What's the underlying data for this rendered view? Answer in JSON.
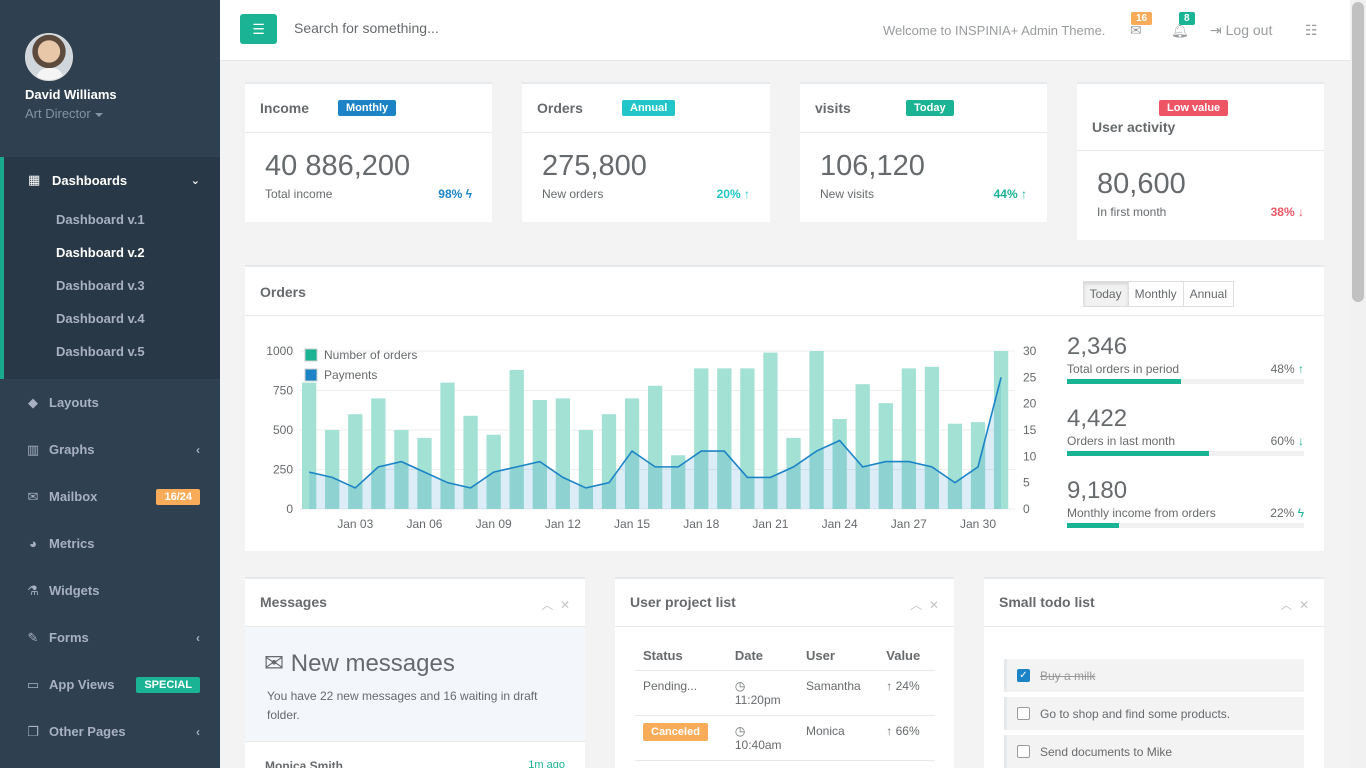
{
  "profile": {
    "name": "David Williams",
    "role": "Art Director"
  },
  "nav": {
    "dashboards": {
      "label": "Dashboards",
      "children": [
        "Dashboard v.1",
        "Dashboard v.2",
        "Dashboard v.3",
        "Dashboard v.4",
        "Dashboard v.5"
      ],
      "active_child": "Dashboard v.2"
    },
    "items": [
      {
        "label": "Layouts",
        "icon": "diamond-icon"
      },
      {
        "label": "Graphs",
        "icon": "bar-chart-icon",
        "arrow": true
      },
      {
        "label": "Mailbox",
        "icon": "envelope-icon",
        "badge": "16/24"
      },
      {
        "label": "Metrics",
        "icon": "pie-chart-icon"
      },
      {
        "label": "Widgets",
        "icon": "flask-icon"
      },
      {
        "label": "Forms",
        "icon": "edit-icon",
        "arrow": true
      },
      {
        "label": "App Views",
        "icon": "desktop-icon",
        "badge": "SPECIAL"
      },
      {
        "label": "Other Pages",
        "icon": "files-icon",
        "arrow": true
      }
    ]
  },
  "topbar": {
    "search_placeholder": "Search for something...",
    "welcome": "Welcome to INSPINIA+ Admin Theme.",
    "mail_count": "16",
    "bell_count": "8",
    "logout": "Log out"
  },
  "stats": [
    {
      "title": "Income",
      "label": "Monthly",
      "value": "40 886,200",
      "sub": "Total income",
      "pct": "98%"
    },
    {
      "title": "Orders",
      "label": "Annual",
      "value": "275,800",
      "sub": "New orders",
      "pct": "20%"
    },
    {
      "title": "visits",
      "label": "Today",
      "value": "106,120",
      "sub": "New visits",
      "pct": "44%"
    },
    {
      "title": "User activity",
      "label": "Low value",
      "value": "80,600",
      "sub": "In first month",
      "pct": "38%"
    }
  ],
  "orders_panel": {
    "title": "Orders",
    "buttons": [
      "Today",
      "Monthly",
      "Annual"
    ],
    "mini_stats": [
      {
        "value": "2,346",
        "label": "Total orders in period",
        "pct": "48%",
        "fill": 0.48
      },
      {
        "value": "4,422",
        "label": "Orders in last month",
        "pct": "60%",
        "fill": 0.6
      },
      {
        "value": "9,180",
        "label": "Monthly income from orders",
        "pct": "22%",
        "fill": 0.22
      }
    ]
  },
  "chart_data": {
    "type": "bar",
    "title": "",
    "legend": [
      "Number of orders",
      "Payments"
    ],
    "x_labels": [
      "Jan 03",
      "Jan 06",
      "Jan 09",
      "Jan 12",
      "Jan 15",
      "Jan 18",
      "Jan 21",
      "Jan 24",
      "Jan 27",
      "Jan 30"
    ],
    "days": [
      1,
      2,
      3,
      4,
      5,
      6,
      7,
      8,
      9,
      10,
      11,
      12,
      13,
      14,
      15,
      16,
      17,
      18,
      19,
      20,
      21,
      22,
      23,
      24,
      25,
      26,
      27,
      28,
      29,
      30,
      31
    ],
    "series": [
      {
        "name": "Number of orders",
        "axis": "left",
        "values": [
          800,
          500,
          600,
          700,
          500,
          450,
          800,
          590,
          470,
          880,
          690,
          700,
          500,
          600,
          700,
          780,
          340,
          890,
          890,
          890,
          990,
          450,
          1000,
          570,
          790,
          670,
          890,
          900,
          540,
          550,
          1000
        ]
      },
      {
        "name": "Payments",
        "axis": "right",
        "values": [
          7,
          6,
          4,
          8,
          9,
          7,
          5,
          4,
          7,
          8,
          9,
          6,
          4,
          5,
          11,
          8,
          8,
          11,
          11,
          6,
          6,
          8,
          11,
          13,
          8,
          9,
          9,
          8,
          5,
          8,
          25
        ]
      }
    ],
    "y_left": {
      "min": 0,
      "max": 1000,
      "ticks": [
        0,
        250,
        500,
        750,
        1000
      ]
    },
    "y_right": {
      "min": 0,
      "max": 30,
      "ticks": [
        0,
        5,
        10,
        15,
        20,
        25,
        30
      ]
    }
  },
  "messages": {
    "title": "Messages",
    "heading": "New messages",
    "text": "You have 22 new messages and 16 waiting in draft folder.",
    "first_name": "Monica Smith",
    "first_time": "1m ago"
  },
  "projects": {
    "title": "User project list",
    "columns": [
      "Status",
      "Date",
      "User",
      "Value"
    ],
    "rows": [
      {
        "status": "Pending...",
        "date": "11:20pm",
        "user": "Samantha",
        "value": "24%"
      },
      {
        "status": "Canceled",
        "date": "10:40am",
        "user": "Monica",
        "value": "66%"
      }
    ]
  },
  "todo": {
    "title": "Small todo list",
    "items": [
      {
        "text": "Buy a milk",
        "done": true
      },
      {
        "text": "Go to shop and find some products.",
        "done": false
      },
      {
        "text": "Send documents to Mike",
        "done": false
      }
    ]
  },
  "colors": {
    "primary": "#1ab394",
    "sidebar": "#2f4050",
    "bars": "#a3e1d4",
    "line": "#1c84c6"
  }
}
